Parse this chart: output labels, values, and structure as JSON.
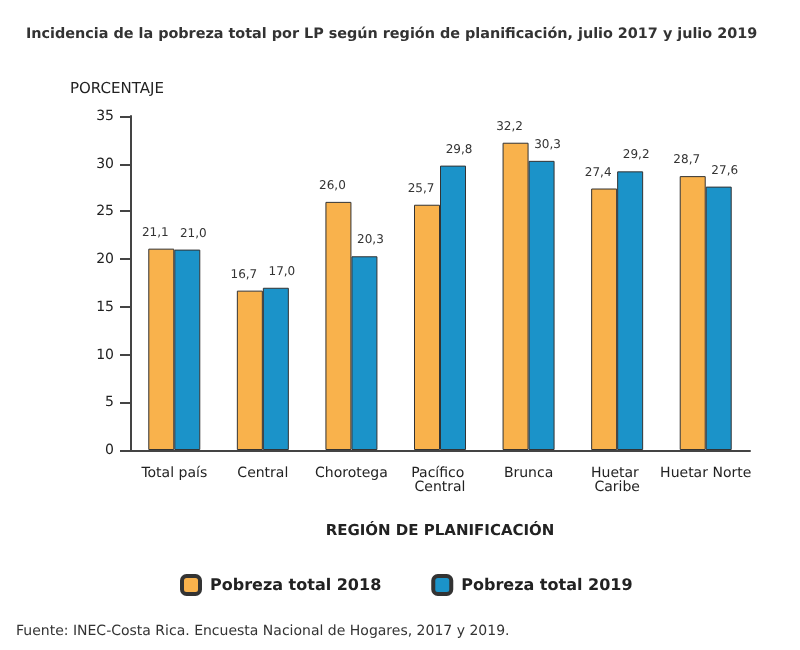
{
  "chart_data": {
    "type": "bar",
    "title": "Incidencia de la pobreza total por LP según región de planificación, julio 2017 y julio 2019",
    "ylabel": "PORCENTAJE",
    "xlabel": "REGIÓN DE PLANIFICACIÓN",
    "categories": [
      "Total país",
      "Central",
      "Chorotega",
      "Pacífico Central",
      "Brunca",
      "Huetar Caribe",
      "Huetar Norte"
    ],
    "series": [
      {
        "name": "Pobreza total 2018",
        "color": "#f9b24c",
        "values": [
          21.1,
          16.7,
          26.0,
          25.7,
          32.2,
          27.4,
          28.7
        ],
        "value_labels": [
          "21,1",
          "16,7",
          "26,0",
          "25,7",
          "32,2",
          "27,4",
          "28,7"
        ]
      },
      {
        "name": "Pobreza total 2019",
        "color": "#1b93c9",
        "values": [
          21.0,
          17.0,
          20.3,
          29.8,
          30.3,
          29.2,
          27.6
        ],
        "value_labels": [
          "21,0",
          "17,0",
          "20,3",
          "29,8",
          "30,3",
          "29,2",
          "27,6"
        ]
      }
    ],
    "ylim": [
      0,
      35
    ],
    "yticks": [
      0,
      5,
      10,
      15,
      20,
      25,
      30,
      35
    ],
    "grid": false,
    "legend": "bottom left",
    "annotations": [
      "Fuente: INEC-Costa Rica. Encuesta Nacional de Hogares, 2017 y 2019."
    ]
  }
}
